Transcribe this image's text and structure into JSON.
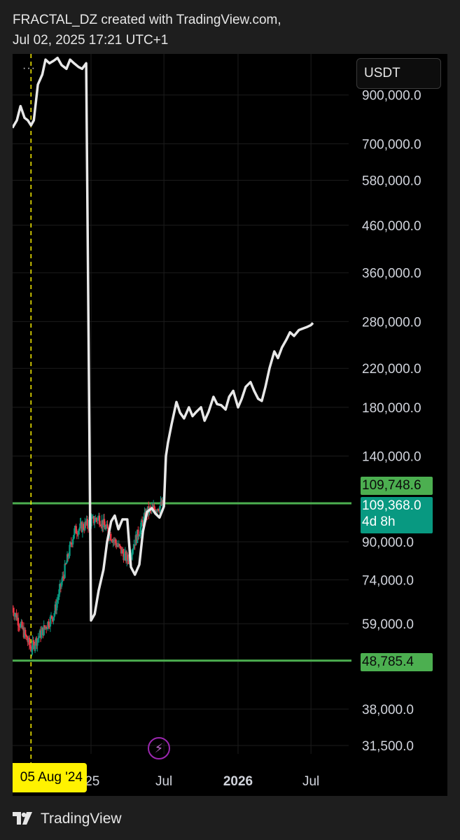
{
  "header": {
    "line1": "FRACTAL_DZ created with TradingView.com,",
    "line2": "Jul 02, 2025 17:21 UTC+1"
  },
  "currency": "USDT",
  "tags": {
    "high": "109,748.6",
    "price": "109,368.0",
    "countdown": "4d 8h",
    "low": "48,785.4"
  },
  "date_marker": "05 Aug '24",
  "footer": {
    "brand": "TradingView"
  },
  "colors": {
    "up": "#089981",
    "down": "#f23645",
    "line": "#e8e8e8",
    "hline": "#4caf50",
    "marker": "#fff200"
  },
  "chart_data": {
    "type": "line",
    "y_scale": "log",
    "ylim": [
      29000,
      1050000
    ],
    "y_ticks": [
      "900,000.0",
      "700,000.0",
      "580,000.0",
      "460,000.0",
      "360,000.0",
      "280,000.0",
      "220,000.0",
      "180,000.0",
      "140,000.0",
      "90,000.0",
      "74,000.0",
      "59,000.0",
      "38,000.0",
      "31,500.0"
    ],
    "x_ticks": [
      "'25",
      "Jul",
      "2026",
      "Jul"
    ],
    "horizontal_levels": [
      109748.6,
      48785.4
    ],
    "vertical_marker_date": "2024-08-05",
    "fractal_line": {
      "x": [
        "2024-06-20",
        "2024-07-01",
        "2024-07-10",
        "2024-07-20",
        "2024-07-28",
        "2024-08-05",
        "2024-08-12",
        "2024-08-22",
        "2024-09-02",
        "2024-09-10",
        "2024-09-20",
        "2024-10-01",
        "2024-10-10",
        "2024-10-20",
        "2024-11-01",
        "2024-11-10",
        "2024-11-20",
        "2024-12-01",
        "2024-12-10",
        "2024-12-20",
        "2025-01-01",
        "2025-01-10",
        "2025-01-20",
        "2025-02-01",
        "2025-02-10",
        "2025-02-20",
        "2025-03-01",
        "2025-03-10",
        "2025-03-20",
        "2025-04-01",
        "2025-04-10",
        "2025-04-20",
        "2025-05-01",
        "2025-05-10",
        "2025-05-20",
        "2025-06-01",
        "2025-06-10",
        "2025-06-20",
        "2025-07-01",
        "2025-07-06",
        "2025-07-11",
        "2025-07-20",
        "2025-08-01",
        "2025-08-10",
        "2025-08-20",
        "2025-09-01",
        "2025-09-10",
        "2025-09-20",
        "2025-10-01",
        "2025-10-10",
        "2025-10-20",
        "2025-11-01",
        "2025-11-10",
        "2025-11-20",
        "2025-12-01",
        "2025-12-10",
        "2025-12-20",
        "2026-01-01",
        "2026-01-10",
        "2026-01-20",
        "2026-02-01",
        "2026-02-10",
        "2026-02-20",
        "2026-03-01",
        "2026-03-10",
        "2026-03-20",
        "2026-04-01",
        "2026-04-10",
        "2026-04-20",
        "2026-05-01",
        "2026-05-10",
        "2026-05-20",
        "2026-06-01",
        "2026-06-10",
        "2026-06-20",
        "2026-07-01",
        "2026-07-06"
      ],
      "y": [
        760000,
        790000,
        850000,
        800000,
        790000,
        770000,
        790000,
        950000,
        1000000,
        1080000,
        1060000,
        1075000,
        1090000,
        1050000,
        1030000,
        1080000,
        1060000,
        1040000,
        1030000,
        1060000,
        60000,
        62000,
        70000,
        78000,
        90000,
        100000,
        103000,
        96000,
        101000,
        101000,
        79000,
        76000,
        80000,
        95000,
        105000,
        107000,
        104000,
        102000,
        108000,
        140000,
        150000,
        165000,
        185000,
        175000,
        170000,
        180000,
        172000,
        176000,
        180000,
        168000,
        176000,
        190000,
        183000,
        182000,
        178000,
        190000,
        196000,
        180000,
        188000,
        200000,
        205000,
        196000,
        188000,
        186000,
        200000,
        220000,
        240000,
        232000,
        245000,
        255000,
        265000,
        260000,
        268000,
        270000,
        272000,
        275000,
        278000
      ]
    },
    "candles_summary": "OHLC candles from Jun 2024 to Jul 2025, range ~49,000–110,000"
  }
}
